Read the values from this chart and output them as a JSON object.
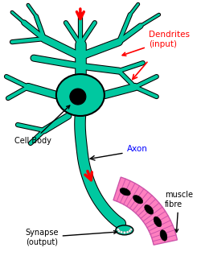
{
  "background_color": "#ffffff",
  "neuron_color": "#00c8a0",
  "neuron_outline": "#000000",
  "nucleus_color": "#000000",
  "muscle_color": "#ff80c0",
  "muscle_outline": "#cc55aa",
  "arrow_color": "#ff0000",
  "label_dendrites": "Dendrites\n(input)",
  "label_axon": "Axon",
  "label_cell_body": "Cell Body",
  "label_synapse": "Synapse\n(output)",
  "label_muscle": "muscle\nfibre",
  "fig_width": 2.5,
  "fig_height": 3.23,
  "dpi": 100
}
